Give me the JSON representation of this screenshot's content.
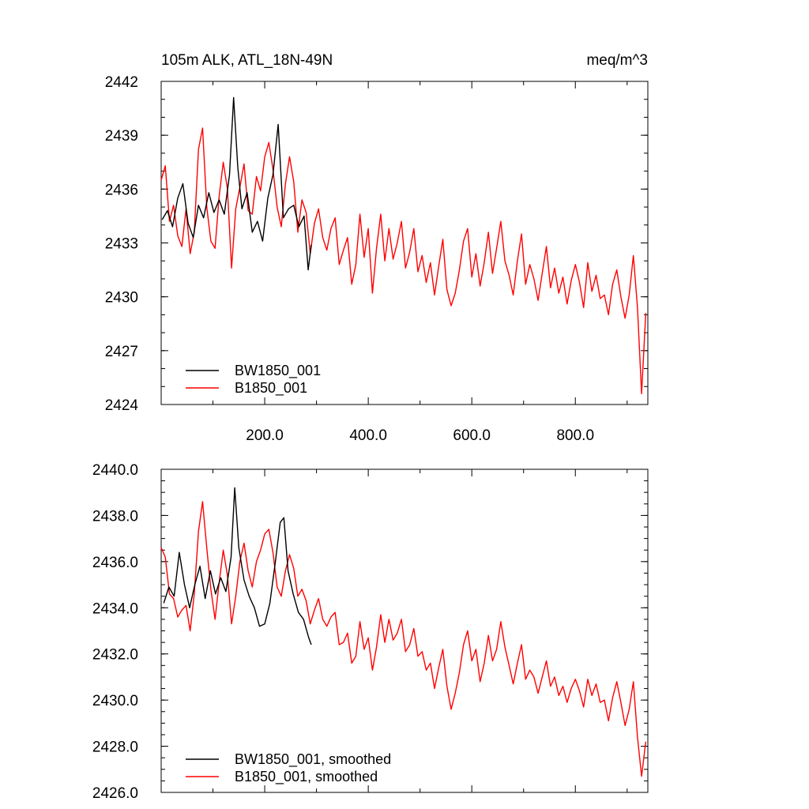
{
  "colors": {
    "series_black": "#000000",
    "series_red": "#ff0000",
    "frame": "#000000",
    "background": "#ffffff"
  },
  "chart_data": [
    {
      "type": "line",
      "title": "105m ALK, ATL_18N-49N",
      "units": "meq/m^3",
      "xlabel": "",
      "ylabel": "",
      "xlim": [
        0,
        940
      ],
      "ylim": [
        2424,
        2442
      ],
      "xticks": [
        200,
        400,
        600,
        800
      ],
      "xtick_labels": [
        "200.0",
        "400.0",
        "600.0",
        "800.0"
      ],
      "yticks": [
        2424,
        2427,
        2430,
        2433,
        2436,
        2439,
        2442
      ],
      "ytick_labels": [
        "2424",
        "2427",
        "2430",
        "2433",
        "2436",
        "2439",
        "2442"
      ],
      "grid": false,
      "legend_position": "bottom-left",
      "series": [
        {
          "name": "BW1850_001",
          "color": "#000000",
          "x": [
            2,
            12,
            22,
            32,
            42,
            52,
            62,
            72,
            82,
            92,
            102,
            112,
            122,
            132,
            140,
            148,
            156,
            166,
            176,
            186,
            196,
            206,
            216,
            226,
            236,
            246,
            256,
            266,
            276,
            284,
            290
          ],
          "y": [
            2434.3,
            2434.8,
            2433.9,
            2435.5,
            2436.3,
            2434.1,
            2433.3,
            2435.1,
            2434.4,
            2435.8,
            2434.7,
            2435.4,
            2434.6,
            2436.8,
            2441.1,
            2437.2,
            2434.9,
            2435.8,
            2433.6,
            2434.2,
            2433.1,
            2435.5,
            2436.8,
            2439.6,
            2434.4,
            2434.9,
            2435.1,
            2433.9,
            2434.5,
            2431.5,
            2432.9
          ]
        },
        {
          "name": "B1850_001",
          "color": "#ff0000",
          "x": [
            0,
            8,
            16,
            24,
            32,
            40,
            48,
            56,
            64,
            72,
            80,
            88,
            96,
            104,
            112,
            120,
            128,
            136,
            144,
            152,
            160,
            168,
            176,
            184,
            192,
            200,
            208,
            216,
            224,
            232,
            240,
            248,
            256,
            264,
            272,
            280,
            288,
            296,
            304,
            312,
            320,
            328,
            336,
            344,
            352,
            360,
            368,
            376,
            384,
            392,
            400,
            408,
            416,
            424,
            432,
            440,
            448,
            456,
            464,
            472,
            480,
            488,
            496,
            504,
            512,
            520,
            528,
            536,
            544,
            552,
            560,
            568,
            576,
            584,
            592,
            600,
            608,
            616,
            624,
            632,
            640,
            648,
            656,
            664,
            672,
            680,
            688,
            696,
            704,
            712,
            720,
            728,
            736,
            744,
            752,
            760,
            768,
            776,
            784,
            792,
            800,
            808,
            816,
            824,
            832,
            840,
            848,
            856,
            864,
            872,
            880,
            888,
            896,
            904,
            912,
            920,
            928,
            936
          ],
          "y": [
            2436.5,
            2437.3,
            2434.2,
            2435.1,
            2433.4,
            2432.8,
            2434.9,
            2432.4,
            2433.6,
            2438.2,
            2439.4,
            2435.0,
            2433.1,
            2432.7,
            2435.6,
            2437.5,
            2436.0,
            2431.6,
            2434.9,
            2436.1,
            2437.4,
            2434.8,
            2434.6,
            2436.7,
            2435.9,
            2437.8,
            2438.6,
            2437.1,
            2435.0,
            2433.9,
            2436.3,
            2437.8,
            2436.4,
            2433.6,
            2435.4,
            2434.7,
            2432.4,
            2434.1,
            2434.9,
            2433.3,
            2432.6,
            2433.8,
            2434.4,
            2431.8,
            2432.6,
            2433.3,
            2430.7,
            2431.8,
            2434.6,
            2432.2,
            2433.8,
            2430.2,
            2432.7,
            2434.6,
            2432.0,
            2433.8,
            2432.1,
            2433.0,
            2434.2,
            2431.6,
            2432.5,
            2433.8,
            2431.4,
            2432.3,
            2430.8,
            2431.9,
            2430.1,
            2431.7,
            2433.2,
            2430.4,
            2429.5,
            2430.2,
            2431.5,
            2433.1,
            2433.8,
            2431.1,
            2432.4,
            2430.6,
            2431.9,
            2433.6,
            2431.3,
            2432.7,
            2434.2,
            2432.0,
            2431.2,
            2430.1,
            2432.0,
            2433.5,
            2430.7,
            2431.8,
            2431.0,
            2429.8,
            2431.3,
            2432.8,
            2430.5,
            2431.6,
            2430.2,
            2431.1,
            2429.6,
            2430.9,
            2431.8,
            2430.8,
            2429.4,
            2431.9,
            2430.3,
            2431.2,
            2429.9,
            2430.1,
            2429.0,
            2430.7,
            2431.5,
            2430.0,
            2428.8,
            2430.1,
            2432.3,
            2429.4,
            2424.6,
            2429.1
          ]
        }
      ]
    },
    {
      "type": "line",
      "title": "",
      "xlabel": "",
      "ylabel": "",
      "xlim": [
        0,
        940
      ],
      "ylim": [
        2426,
        2440
      ],
      "xticks": [
        200,
        400,
        600,
        800
      ],
      "yticks": [
        2426,
        2428,
        2430,
        2432,
        2434,
        2436,
        2438,
        2440
      ],
      "ytick_labels": [
        "2426.0",
        "2428.0",
        "2430.0",
        "2432.0",
        "2434.0",
        "2436.0",
        "2438.0",
        "2440.0"
      ],
      "grid": false,
      "legend_position": "bottom-left",
      "series": [
        {
          "name": "BW1850_001, smoothed",
          "color": "#000000",
          "x": [
            5,
            15,
            25,
            35,
            45,
            55,
            65,
            75,
            85,
            95,
            105,
            115,
            125,
            135,
            142,
            150,
            160,
            170,
            180,
            190,
            200,
            210,
            220,
            230,
            237,
            245,
            255,
            265,
            275,
            285,
            290
          ],
          "y": [
            2434.2,
            2434.9,
            2434.5,
            2436.4,
            2435.0,
            2434.0,
            2435.0,
            2435.8,
            2434.4,
            2435.6,
            2434.6,
            2435.3,
            2434.7,
            2436.2,
            2439.2,
            2436.6,
            2435.2,
            2434.5,
            2434.0,
            2433.2,
            2433.3,
            2434.2,
            2435.9,
            2437.7,
            2437.9,
            2435.6,
            2434.6,
            2433.8,
            2433.5,
            2432.7,
            2432.4
          ]
        },
        {
          "name": "B1850_001, smoothed",
          "color": "#ff0000",
          "x": [
            0,
            8,
            16,
            24,
            32,
            40,
            48,
            56,
            64,
            72,
            80,
            88,
            96,
            104,
            112,
            120,
            128,
            136,
            144,
            152,
            160,
            168,
            176,
            184,
            192,
            200,
            208,
            216,
            224,
            232,
            240,
            248,
            256,
            264,
            272,
            280,
            288,
            296,
            304,
            312,
            320,
            328,
            336,
            344,
            352,
            360,
            368,
            376,
            384,
            392,
            400,
            408,
            416,
            424,
            432,
            440,
            448,
            456,
            464,
            472,
            480,
            488,
            496,
            504,
            512,
            520,
            528,
            536,
            544,
            552,
            560,
            568,
            576,
            584,
            592,
            600,
            608,
            616,
            624,
            632,
            640,
            648,
            656,
            664,
            672,
            680,
            688,
            696,
            704,
            712,
            720,
            728,
            736,
            744,
            752,
            760,
            768,
            776,
            784,
            792,
            800,
            808,
            816,
            824,
            832,
            840,
            848,
            856,
            864,
            872,
            880,
            888,
            896,
            904,
            912,
            920,
            928,
            936
          ],
          "y": [
            2436.6,
            2436.2,
            2434.6,
            2434.4,
            2433.6,
            2433.9,
            2434.1,
            2433.0,
            2434.6,
            2437.3,
            2438.6,
            2436.6,
            2434.8,
            2433.5,
            2435.1,
            2436.5,
            2435.4,
            2433.3,
            2434.5,
            2436.0,
            2436.8,
            2435.6,
            2434.9,
            2436.0,
            2436.5,
            2437.2,
            2437.4,
            2436.4,
            2434.9,
            2434.5,
            2435.6,
            2436.3,
            2435.7,
            2434.5,
            2434.8,
            2434.3,
            2433.3,
            2433.9,
            2434.4,
            2433.5,
            2433.2,
            2433.6,
            2433.8,
            2432.4,
            2432.5,
            2432.9,
            2431.6,
            2431.9,
            2433.4,
            2432.2,
            2432.7,
            2431.3,
            2432.3,
            2433.7,
            2432.5,
            2433.5,
            2432.6,
            2432.9,
            2433.5,
            2432.1,
            2432.4,
            2433.1,
            2431.9,
            2432.1,
            2431.3,
            2431.6,
            2430.5,
            2431.4,
            2432.2,
            2430.6,
            2429.6,
            2430.3,
            2431.2,
            2432.4,
            2433.0,
            2431.7,
            2432.2,
            2430.8,
            2431.6,
            2432.8,
            2431.7,
            2432.2,
            2433.4,
            2432.3,
            2431.5,
            2430.7,
            2431.6,
            2432.4,
            2430.9,
            2431.3,
            2431.0,
            2430.3,
            2431.0,
            2431.7,
            2430.6,
            2431.0,
            2430.2,
            2430.6,
            2429.9,
            2430.5,
            2430.9,
            2430.4,
            2429.7,
            2430.9,
            2430.2,
            2430.7,
            2429.9,
            2430.0,
            2429.1,
            2430.1,
            2430.8,
            2429.9,
            2428.9,
            2429.6,
            2430.8,
            2428.4,
            2426.7,
            2428.2
          ]
        }
      ]
    }
  ]
}
